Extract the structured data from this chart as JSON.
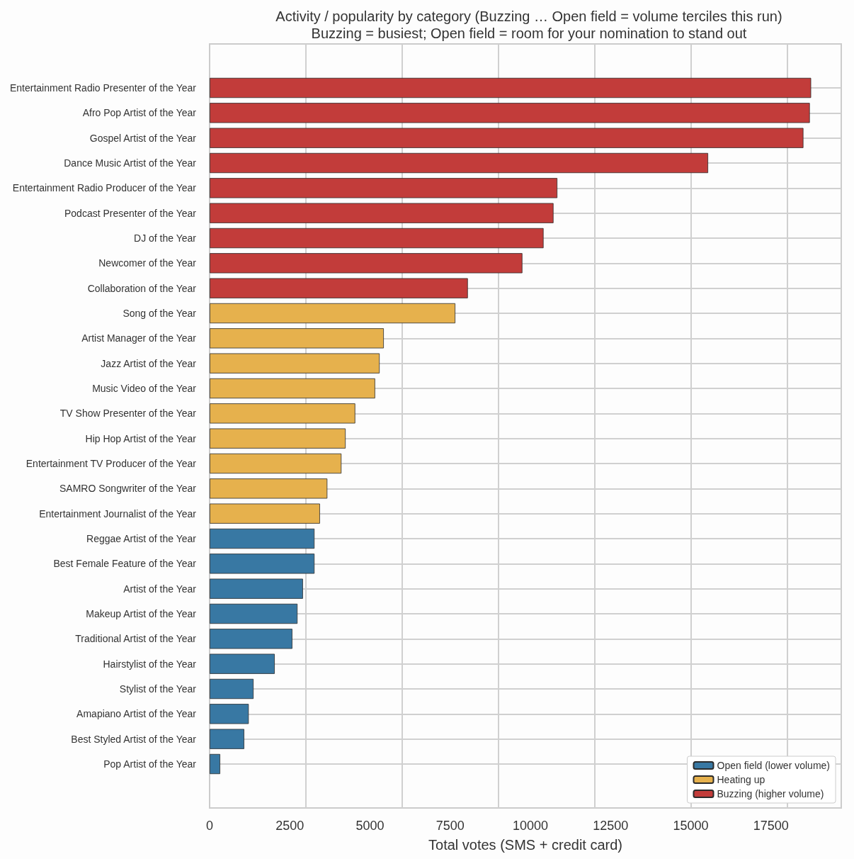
{
  "chart_data": {
    "type": "bar",
    "orientation": "horizontal",
    "stacked": true,
    "title": "Activity / popularity by category (Buzzing … Open field = volume terciles this run)",
    "subtitle": "Buzzing = busiest; Open field = room for your nomination to stand out",
    "xlabel": "Total votes (SMS + credit card)",
    "categories": [
      "Entertainment Radio Presenter of the Year",
      "Afro Pop Artist of the Year",
      "Gospel Artist of the Year",
      "Dance Music Artist of the Year",
      "Entertainment Radio Producer of the Year",
      "Podcast Presenter of the Year",
      "DJ of the Year",
      "Newcomer of the Year",
      "Collaboration of the Year",
      "Song of the Year",
      "Artist Manager of the Year",
      "Jazz Artist of the Year",
      "Music Video of the Year",
      "TV Show Presenter of the Year",
      "Hip Hop Artist of the Year",
      "Entertainment TV Producer of the Year",
      "SAMRO Songwriter of the Year",
      "Entertainment Journalist of the Year",
      "Reggae Artist of the Year",
      "Best Female Feature of the Year",
      "Artist of the Year",
      "Makeup Artist of the Year",
      "Traditional Artist of the Year",
      "Hairstylist of the Year",
      "Stylist of the Year",
      "Amapiano Artist of the Year",
      "Best Styled Artist of the Year",
      "Pop Artist of the Year"
    ],
    "series": [
      {
        "name": "Open field (lower volume)",
        "color": "#3878a3",
        "values": [
          null,
          null,
          null,
          null,
          null,
          null,
          null,
          null,
          null,
          null,
          null,
          null,
          null,
          null,
          null,
          null,
          null,
          null,
          3270,
          3270,
          2910,
          2740,
          2580,
          2030,
          1370,
          1220,
          1080,
          330
        ]
      },
      {
        "name": "Heating up",
        "color": "#e6b14d",
        "values": [
          null,
          null,
          null,
          null,
          null,
          null,
          null,
          null,
          null,
          7660,
          5430,
          5300,
          5160,
          4540,
          4240,
          4110,
          3670,
          3440,
          null,
          null,
          null,
          null,
          null,
          null,
          null,
          null,
          null,
          null
        ]
      },
      {
        "name": "Buzzing (higher volume)",
        "color": "#c23c3a",
        "values": [
          18750,
          18710,
          18510,
          15540,
          10840,
          10720,
          10410,
          9750,
          8050,
          null,
          null,
          null,
          null,
          null,
          null,
          null,
          null,
          null,
          null,
          null,
          null,
          null,
          null,
          null,
          null,
          null,
          null,
          null
        ]
      }
    ],
    "xlim": [
      0,
      19690
    ],
    "xticks": [
      0,
      2500,
      5000,
      7500,
      10000,
      12500,
      15000,
      17500
    ],
    "grid": true,
    "legend": "bottom right"
  }
}
